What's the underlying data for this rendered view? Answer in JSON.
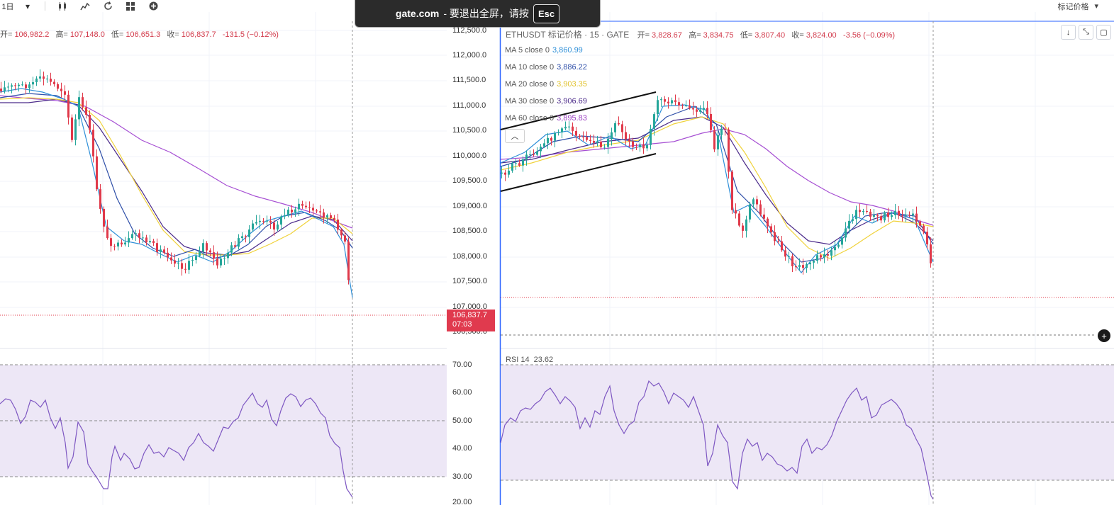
{
  "toolbar": {
    "interval": "1日",
    "interval_arrow": "▾",
    "right_label": "标记价格",
    "right_arrow": "▾"
  },
  "toast": {
    "domain": "gate.com",
    "message": "- 要退出全屏，请按",
    "key": "Esc"
  },
  "left_chart": {
    "ohlc": {
      "open_label": "开=",
      "open": "106,982.2",
      "high_label": "高=",
      "high": "107,148.0",
      "low_label": "低=",
      "low": "106,651.3",
      "close_label": "收=",
      "close": "106,837.7",
      "change": "-131.5 (−0.12%)"
    },
    "price_ticks": [
      "112,500.0",
      "112,000.0",
      "111,500.0",
      "111,000.0",
      "110,500.0",
      "110,000.0",
      "109,500.0",
      "109,000.0",
      "108,500.0",
      "108,000.0",
      "107,500.0",
      "107,000.0",
      "106,500.0"
    ],
    "price_tag": {
      "price": "106,837.7",
      "countdown": "07:03"
    },
    "rsi_ticks": [
      "70.00",
      "60.00",
      "50.00",
      "40.00",
      "30.00",
      "20.00"
    ]
  },
  "right_chart": {
    "symbol": "ETHUSDT 标记价格 · 15 · GATE",
    "ohlc": {
      "open_label": "开=",
      "open": "3,828.67",
      "high_label": "高=",
      "high": "3,834.75",
      "low_label": "低=",
      "low": "3,807.40",
      "close_label": "收=",
      "close": "3,824.00",
      "change": "-3.56 (−0.09%)"
    },
    "ma_lines": [
      {
        "label": "MA 5 close 0",
        "value": "3,860.99",
        "color": "#2e8fd8"
      },
      {
        "label": "MA 10 close 0",
        "value": "3,886.22",
        "color": "#2f4fa8"
      },
      {
        "label": "MA 20 close 0",
        "value": "3,903.35",
        "color": "#f0d23a"
      },
      {
        "label": "MA 30 close 0",
        "value": "3,906.69",
        "color": "#4b2a8a"
      },
      {
        "label": "MA 60 close 0",
        "value": "3,895.83",
        "color": "#9a3fc0"
      }
    ],
    "rsi_label": "RSI 14",
    "rsi_value": "23.62"
  },
  "colors": {
    "up": "#26a69a",
    "down": "#e0394a",
    "rsi_line": "#7e57c2",
    "rsi_band": "#ede7f6"
  }
}
